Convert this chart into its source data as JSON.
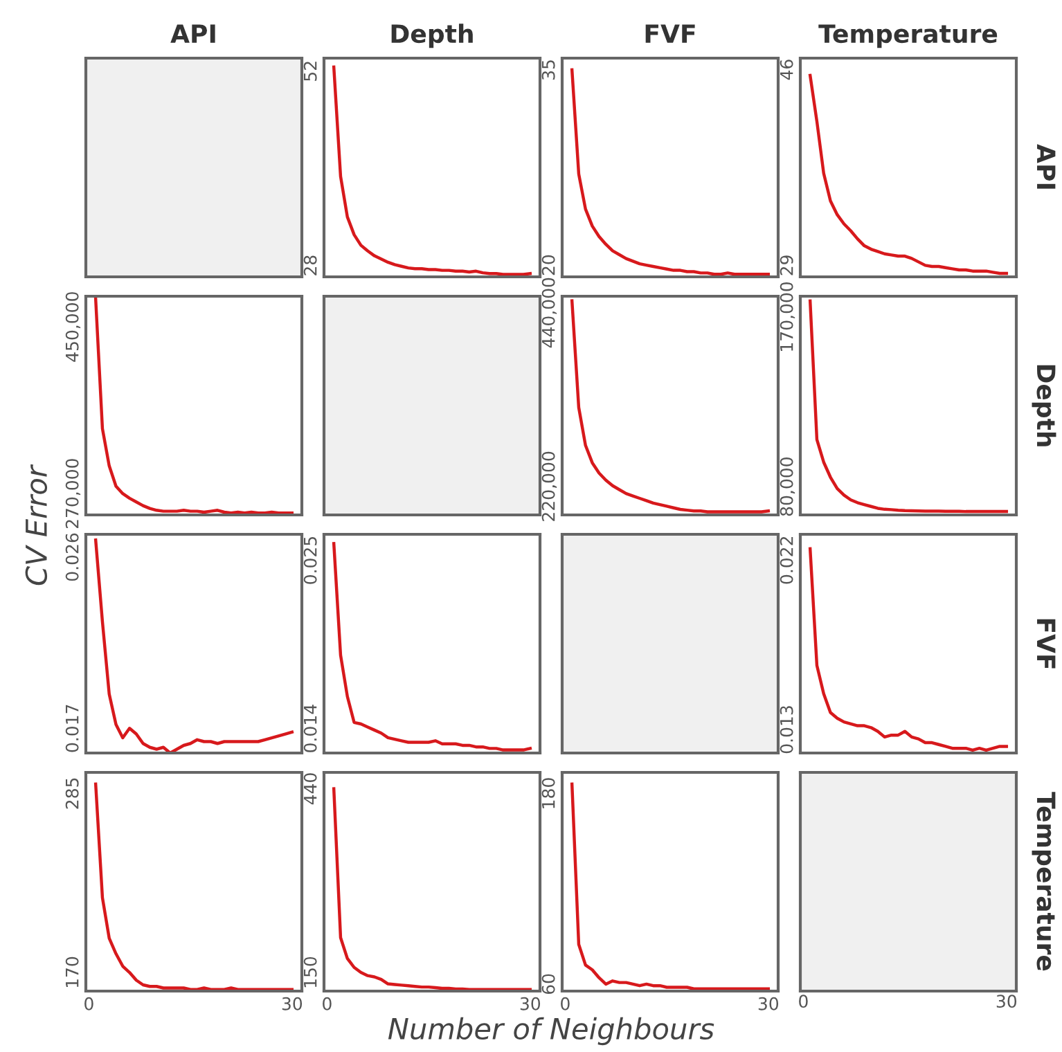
{
  "chart_data": [
    {
      "type": "other",
      "title": "API"
    },
    {
      "type": "line",
      "title": "Depth",
      "x": [
        1,
        2,
        3,
        4,
        5,
        6,
        7,
        8,
        9,
        10,
        11,
        12,
        13,
        14,
        15,
        16,
        17,
        18,
        19,
        20,
        21,
        22,
        23,
        24,
        25,
        26,
        27,
        28,
        29,
        30
      ],
      "color": "#d7191c",
      "values": [
        52.5,
        39,
        34,
        31.8,
        30.5,
        29.8,
        29.2,
        28.8,
        28.4,
        28.1,
        27.9,
        27.7,
        27.6,
        27.6,
        27.5,
        27.5,
        27.4,
        27.4,
        27.3,
        27.3,
        27.2,
        27.3,
        27.1,
        27.0,
        27.0,
        26.9,
        26.9,
        26.9,
        26.9,
        27.0
      ],
      "xlim": [
        -0.45,
        31.45
      ],
      "ylim": [
        26.6,
        53.6
      ],
      "yticks": [
        28,
        52
      ],
      "tick_labels": "y"
    },
    {
      "type": "line",
      "title": "FVF",
      "x": [
        1,
        2,
        3,
        4,
        5,
        6,
        7,
        8,
        9,
        10,
        11,
        12,
        13,
        14,
        15,
        16,
        17,
        18,
        19,
        20,
        21,
        22,
        23,
        24,
        25,
        26,
        27,
        28,
        29,
        30
      ],
      "color": "#d7191c",
      "values": [
        35,
        27,
        24.3,
        23.0,
        22.2,
        21.6,
        21.1,
        20.8,
        20.5,
        20.3,
        20.1,
        20.0,
        19.9,
        19.8,
        19.7,
        19.6,
        19.6,
        19.5,
        19.5,
        19.4,
        19.4,
        19.3,
        19.3,
        19.4,
        19.3,
        19.3,
        19.3,
        19.3,
        19.3,
        19.3
      ],
      "xlim": [
        -0.45,
        31.45
      ],
      "ylim": [
        19.1,
        35.9
      ],
      "yticks": [
        20,
        35
      ],
      "tick_labels": "y"
    },
    {
      "type": "line",
      "title": "Temperature",
      "y2label": "API",
      "x": [
        1,
        2,
        3,
        4,
        5,
        6,
        7,
        8,
        9,
        10,
        11,
        12,
        13,
        14,
        15,
        16,
        17,
        18,
        19,
        20,
        21,
        22,
        23,
        24,
        25,
        26,
        27,
        28,
        29,
        30
      ],
      "color": "#d7191c",
      "values": [
        45.5,
        41.5,
        37,
        34.6,
        33.4,
        32.6,
        32,
        31.3,
        30.7,
        30.4,
        30.2,
        30.0,
        29.9,
        29.8,
        29.8,
        29.6,
        29.3,
        29.0,
        28.9,
        28.9,
        28.8,
        28.7,
        28.6,
        28.6,
        28.5,
        28.5,
        28.5,
        28.4,
        28.3,
        28.3
      ],
      "xlim": [
        -0.45,
        31.45
      ],
      "ylim": [
        28,
        47
      ],
      "yticks": [
        29,
        46
      ],
      "tick_labels": "y"
    },
    {
      "type": "line",
      "ylabel": "CV Error",
      "x": [
        1,
        2,
        3,
        4,
        5,
        6,
        7,
        8,
        9,
        10,
        11,
        12,
        13,
        14,
        15,
        16,
        17,
        18,
        19,
        20,
        21,
        22,
        23,
        24,
        25,
        26,
        27,
        28,
        29,
        30
      ],
      "color": "#d7191c",
      "values": [
        480000,
        340000,
        300000,
        278000,
        270000,
        265000,
        261000,
        257000,
        254000,
        252000,
        251000,
        251000,
        251000,
        252000,
        251000,
        251000,
        250000,
        251000,
        252000,
        250000,
        249000,
        250000,
        249000,
        250000,
        249000,
        249000,
        250000,
        249000,
        249000,
        249000
      ],
      "xlim": [
        -0.45,
        31.45
      ],
      "ylim": [
        247000,
        483000
      ],
      "yticks": [
        {
          "value": 270000,
          "label": "270,000"
        },
        {
          "value": 450000,
          "label": "450,000"
        }
      ],
      "tick_labels": "y"
    },
    {
      "type": "other"
    },
    {
      "type": "line",
      "x": [
        1,
        2,
        3,
        4,
        5,
        6,
        7,
        8,
        9,
        10,
        11,
        12,
        13,
        14,
        15,
        16,
        17,
        18,
        19,
        20,
        21,
        22,
        23,
        24,
        25,
        26,
        27,
        28,
        29,
        30
      ],
      "color": "#d7191c",
      "values": [
        455000,
        320000,
        272000,
        250000,
        237000,
        228000,
        221000,
        216000,
        211000,
        208000,
        205000,
        202000,
        199000,
        197000,
        195000,
        193000,
        191000,
        190000,
        189000,
        189000,
        188000,
        188000,
        188000,
        188000,
        188000,
        188000,
        188000,
        188000,
        188000,
        189000
      ],
      "xlim": [
        -0.45,
        31.45
      ],
      "ylim": [
        184000,
        460800
      ],
      "yticks": [
        {
          "value": 220000,
          "label": "220,000"
        },
        {
          "value": 440000,
          "label": "440,000"
        }
      ],
      "tick_labels": "y"
    },
    {
      "type": "line",
      "y2label": "Depth",
      "x": [
        1,
        2,
        3,
        4,
        5,
        6,
        7,
        8,
        9,
        10,
        11,
        12,
        13,
        14,
        15,
        16,
        17,
        18,
        19,
        20,
        21,
        22,
        23,
        24,
        25,
        26,
        27,
        28,
        29,
        30
      ],
      "color": "#d7191c",
      "values": [
        178500,
        105000,
        93000,
        85000,
        79000,
        75500,
        73000,
        71500,
        70500,
        69500,
        68500,
        68000,
        67800,
        67500,
        67300,
        67200,
        67100,
        67000,
        67000,
        67000,
        66900,
        66900,
        66900,
        66800,
        66800,
        66800,
        66800,
        66800,
        66800,
        66800
      ],
      "xlim": [
        -0.45,
        31.45
      ],
      "ylim": [
        65000,
        181000
      ],
      "yticks": [
        {
          "value": 80000,
          "label": "80,000"
        },
        {
          "value": 170000,
          "label": "170,000"
        }
      ],
      "tick_labels": "y"
    },
    {
      "type": "line",
      "x": [
        1,
        2,
        3,
        4,
        5,
        6,
        7,
        8,
        9,
        10,
        11,
        12,
        13,
        14,
        15,
        16,
        17,
        18,
        19,
        20,
        21,
        22,
        23,
        24,
        25,
        26,
        27,
        28,
        29,
        30
      ],
      "color": "#d7191c",
      "values": [
        0.0269,
        0.0226,
        0.0188,
        0.0172,
        0.0165,
        0.017,
        0.0167,
        0.0162,
        0.016,
        0.0159,
        0.016,
        0.0157,
        0.0159,
        0.0161,
        0.0162,
        0.0164,
        0.0163,
        0.0163,
        0.0162,
        0.0163,
        0.0163,
        0.0163,
        0.0163,
        0.0163,
        0.0163,
        0.0164,
        0.0165,
        0.0166,
        0.0167,
        0.0168
      ],
      "xlim": [
        -0.45,
        31.45
      ],
      "ylim": [
        0.0157,
        0.0272
      ],
      "yticks": [
        0.017,
        0.026
      ],
      "tick_labels": "y"
    },
    {
      "type": "line",
      "x": [
        1,
        2,
        3,
        4,
        5,
        6,
        7,
        8,
        9,
        10,
        11,
        12,
        13,
        14,
        15,
        16,
        17,
        18,
        19,
        20,
        21,
        22,
        23,
        24,
        25,
        26,
        27,
        28,
        29,
        30
      ],
      "color": "#d7191c",
      "values": [
        0.0261,
        0.0188,
        0.0161,
        0.0144,
        0.0143,
        0.0141,
        0.0139,
        0.0137,
        0.0134,
        0.0133,
        0.0132,
        0.0131,
        0.0131,
        0.0131,
        0.0131,
        0.0132,
        0.013,
        0.013,
        0.013,
        0.0129,
        0.0129,
        0.0128,
        0.0128,
        0.0127,
        0.0127,
        0.0126,
        0.0126,
        0.0126,
        0.0126,
        0.0127
      ],
      "xlim": [
        -0.45,
        31.45
      ],
      "ylim": [
        0.0124,
        0.0267
      ],
      "yticks": [
        0.014,
        0.025
      ],
      "tick_labels": "y"
    },
    {
      "type": "other"
    },
    {
      "type": "line",
      "y2label": "FVF",
      "x": [
        1,
        2,
        3,
        4,
        5,
        6,
        7,
        8,
        9,
        10,
        11,
        12,
        13,
        14,
        15,
        16,
        17,
        18,
        19,
        20,
        21,
        22,
        23,
        24,
        25,
        26,
        27,
        28,
        29,
        30
      ],
      "color": "#d7191c",
      "values": [
        0.0226,
        0.0164,
        0.0149,
        0.0139,
        0.0136,
        0.0134,
        0.0133,
        0.0132,
        0.0132,
        0.0131,
        0.0129,
        0.0126,
        0.0127,
        0.0127,
        0.0129,
        0.0126,
        0.0125,
        0.0123,
        0.0123,
        0.0122,
        0.0121,
        0.012,
        0.012,
        0.012,
        0.0119,
        0.012,
        0.0119,
        0.012,
        0.0121,
        0.0121
      ],
      "xlim": [
        -0.45,
        31.45
      ],
      "ylim": [
        0.01175,
        0.02337
      ],
      "yticks": [
        0.013,
        0.022
      ],
      "tick_labels": "y"
    },
    {
      "type": "line",
      "x": [
        1,
        2,
        3,
        4,
        5,
        6,
        7,
        8,
        9,
        10,
        11,
        12,
        13,
        14,
        15,
        16,
        17,
        18,
        19,
        20,
        21,
        22,
        23,
        24,
        25,
        26,
        27,
        28,
        29,
        30
      ],
      "color": "#d7191c",
      "values": [
        291,
        218,
        192,
        182,
        174,
        170,
        165,
        162,
        161,
        161,
        160,
        160,
        160,
        160,
        159,
        159,
        160,
        159,
        159,
        159,
        160,
        159,
        159,
        159,
        159,
        159,
        159,
        159,
        159,
        159
      ],
      "xlim": [
        -0.45,
        31.45
      ],
      "ylim": [
        158,
        298.5
      ],
      "xticks": [
        0,
        30
      ],
      "yticks": [
        170,
        285
      ]
    },
    {
      "type": "line",
      "xlabel": "Number of Neighbours",
      "x": [
        1,
        2,
        3,
        4,
        5,
        6,
        7,
        8,
        9,
        10,
        11,
        12,
        13,
        14,
        15,
        16,
        17,
        18,
        19,
        20,
        21,
        22,
        23,
        24,
        25,
        26,
        27,
        28,
        29,
        30
      ],
      "color": "#d7191c",
      "values": [
        440,
        205,
        172,
        158,
        150,
        145,
        143,
        139,
        132,
        131,
        130,
        129,
        128,
        127,
        127,
        126,
        125,
        125,
        124,
        124,
        123,
        123,
        123,
        123,
        123,
        123,
        123,
        123,
        123,
        123
      ],
      "xlim": [
        -0.45,
        31.45
      ],
      "ylim": [
        120.6,
        465.7
      ],
      "xticks": [
        0,
        30
      ],
      "yticks": [
        150,
        440
      ]
    },
    {
      "type": "line",
      "x": [
        1,
        2,
        3,
        4,
        5,
        6,
        7,
        8,
        9,
        10,
        11,
        12,
        13,
        14,
        15,
        16,
        17,
        18,
        19,
        20,
        21,
        22,
        23,
        24,
        25,
        26,
        27,
        28,
        29,
        30
      ],
      "color": "#d7191c",
      "values": [
        186,
        85,
        72,
        69,
        64,
        60,
        62,
        61,
        61,
        60,
        59,
        60,
        59,
        59,
        58,
        58,
        58,
        58,
        57,
        57,
        57,
        57,
        57,
        57,
        57,
        57,
        57,
        57,
        57,
        57
      ],
      "xlim": [
        -0.45,
        31.45
      ],
      "ylim": [
        55.6,
        193.3
      ],
      "xticks": [
        0,
        30
      ],
      "yticks": [
        60,
        180
      ]
    },
    {
      "type": "other",
      "y2label": "Temperature",
      "annotations": [
        "0",
        "30"
      ]
    }
  ]
}
